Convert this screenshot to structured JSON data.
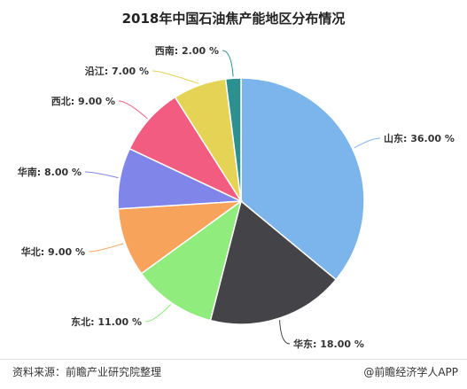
{
  "chart_data": {
    "type": "pie",
    "title": "2018年中国石油焦产能地区分布情况",
    "slices": [
      {
        "label": "山东",
        "value": 36.0,
        "text": "山东: 36.00 %",
        "color": "#7cb5ec"
      },
      {
        "label": "华东",
        "value": 18.0,
        "text": "华东: 18.00 %",
        "color": "#434348"
      },
      {
        "label": "东北",
        "value": 11.0,
        "text": "东北: 11.00 %",
        "color": "#90ed7d"
      },
      {
        "label": "华北",
        "value": 9.0,
        "text": "华北: 9.00 %",
        "color": "#f7a35c"
      },
      {
        "label": "华南",
        "value": 8.0,
        "text": "华南: 8.00 %",
        "color": "#8085e9"
      },
      {
        "label": "西北",
        "value": 9.0,
        "text": "西北: 9.00 %",
        "color": "#f15c80"
      },
      {
        "label": "沿江",
        "value": 7.0,
        "text": "沿江: 7.00 %",
        "color": "#e4d354"
      },
      {
        "label": "西南",
        "value": 2.0,
        "text": "西南: 2.00 %",
        "color": "#2b908f"
      }
    ]
  },
  "footer": {
    "source": "资料来源：前瞻产业研究院整理",
    "brand": "@前瞻经济学人APP"
  }
}
